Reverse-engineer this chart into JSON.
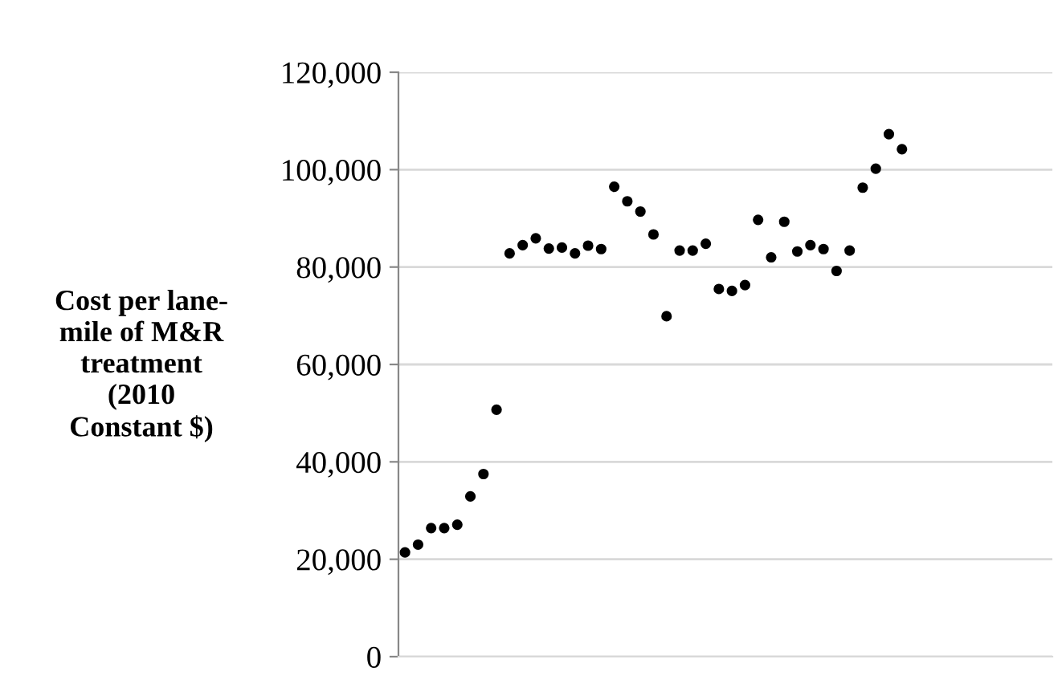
{
  "chart_data": {
    "type": "scatter",
    "ylabel": "Cost per lane-\nmile of M&R\ntreatment\n(2010\nConstant $)",
    "categories": [
      null,
      null,
      null,
      null,
      null,
      null,
      null,
      null,
      null,
      null,
      null,
      null,
      null,
      null,
      null,
      null,
      null,
      null,
      null,
      null,
      null,
      null,
      null,
      null,
      null,
      null,
      null,
      null,
      null,
      null,
      null,
      null,
      null,
      null,
      null,
      null,
      null,
      null,
      null,
      null,
      null,
      null,
      null,
      null,
      null,
      null,
      null,
      null,
      null,
      null
    ],
    "values": [
      21400,
      23000,
      26400,
      26400,
      27100,
      32900,
      37500,
      50700,
      82800,
      84500,
      85900,
      83800,
      84000,
      82800,
      84400,
      83700,
      96500,
      93500,
      91400,
      86700,
      69900,
      83400,
      83400,
      84800,
      75500,
      75100,
      76300,
      89700,
      82000,
      89300,
      83200,
      84500,
      83700,
      79200,
      83400,
      96300,
      100200,
      107300,
      104200,
      null,
      null,
      null,
      null,
      null,
      null,
      null,
      null,
      null,
      null,
      null
    ],
    "color": "#000000",
    "marker": "circle",
    "ylim": [
      0,
      120000
    ],
    "yticks": [
      {
        "value": 0,
        "label": "0"
      },
      {
        "value": 20000,
        "label": "20,000"
      },
      {
        "value": 40000,
        "label": "40,000"
      },
      {
        "value": 60000,
        "label": "60,000"
      },
      {
        "value": 80000,
        "label": "80,000"
      },
      {
        "value": 100000,
        "label": "100,000"
      },
      {
        "value": 120000,
        "label": "120,000"
      }
    ],
    "grid": "y",
    "tick_labels": "y"
  }
}
